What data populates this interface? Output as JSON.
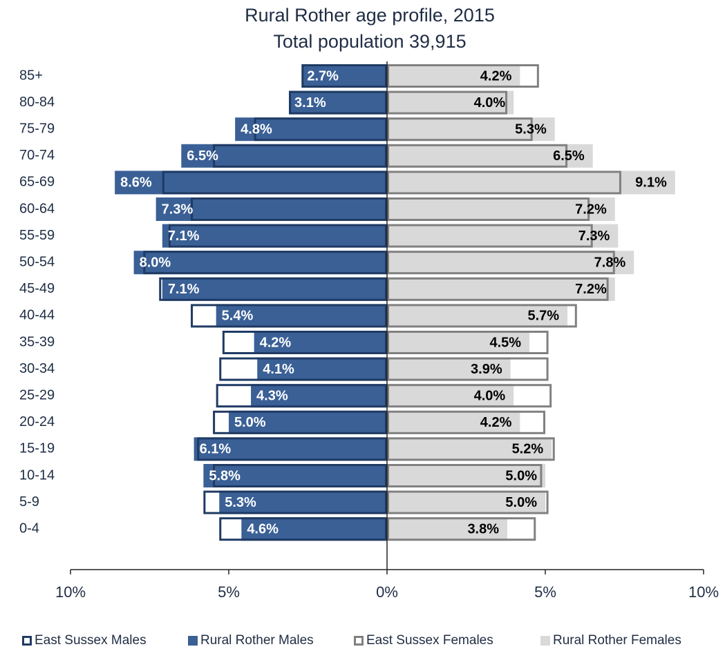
{
  "chart_data": {
    "type": "pyramid",
    "title": "Rural Rother age profile, 2015",
    "subtitle": "Total population 39,915",
    "categories": [
      "85+",
      "80-84",
      "75-79",
      "70-74",
      "65-69",
      "60-64",
      "55-59",
      "50-54",
      "45-49",
      "40-44",
      "35-39",
      "30-34",
      "25-29",
      "20-24",
      "15-19",
      "10-14",
      "5-9",
      "0-4"
    ],
    "series": [
      {
        "name": "East Sussex Males",
        "side": "left",
        "style": "outline",
        "color": "#1f3a63",
        "values": [
          2.7,
          3.1,
          4.2,
          5.5,
          7.1,
          6.2,
          6.9,
          7.7,
          7.2,
          6.2,
          5.2,
          5.3,
          5.4,
          5.5,
          6.0,
          5.5,
          5.8,
          5.3
        ]
      },
      {
        "name": "Rural Rother Males",
        "side": "left",
        "style": "fill",
        "color": "#3a6096",
        "label_color": "#ffffff",
        "values": [
          2.7,
          3.1,
          4.8,
          6.5,
          8.6,
          7.3,
          7.1,
          8.0,
          7.1,
          5.4,
          4.2,
          4.1,
          4.3,
          5.0,
          6.1,
          5.8,
          5.3,
          4.6
        ],
        "value_labels": [
          "2.7%",
          "3.1%",
          "4.8%",
          "6.5%",
          "8.6%",
          "7.3%",
          "7.1%",
          "8.0%",
          "7.1%",
          "5.4%",
          "4.2%",
          "4.1%",
          "4.3%",
          "5.0%",
          "6.1%",
          "5.8%",
          "5.3%",
          "4.6%"
        ]
      },
      {
        "name": "East Sussex Females",
        "side": "right",
        "style": "outline",
        "color": "#808080",
        "values": [
          4.8,
          3.8,
          4.6,
          5.7,
          7.4,
          6.4,
          6.5,
          7.2,
          7.0,
          6.0,
          5.1,
          5.1,
          5.2,
          5.0,
          5.3,
          4.9,
          5.1,
          4.7
        ]
      },
      {
        "name": "Rural Rother Females",
        "side": "right",
        "style": "fill",
        "color": "#d9d9d9",
        "label_color": "#000000",
        "values": [
          4.2,
          4.0,
          5.3,
          6.5,
          9.1,
          7.2,
          7.3,
          7.8,
          7.2,
          5.7,
          4.5,
          3.9,
          4.0,
          4.2,
          5.2,
          5.0,
          5.0,
          3.8
        ],
        "value_labels": [
          "4.2%",
          "4.0%",
          "5.3%",
          "6.5%",
          "9.1%",
          "7.2%",
          "7.3%",
          "7.8%",
          "7.2%",
          "5.7%",
          "4.5%",
          "3.9%",
          "4.0%",
          "4.2%",
          "5.2%",
          "5.0%",
          "5.0%",
          "3.8%"
        ]
      }
    ],
    "xlim": [
      -10,
      10
    ],
    "xticks": [
      {
        "value": -10,
        "label": "10%"
      },
      {
        "value": -5,
        "label": "5%"
      },
      {
        "value": 0,
        "label": "0%"
      },
      {
        "value": 5,
        "label": "5%"
      },
      {
        "value": 10,
        "label": "10%"
      }
    ],
    "legend": "bottom"
  }
}
